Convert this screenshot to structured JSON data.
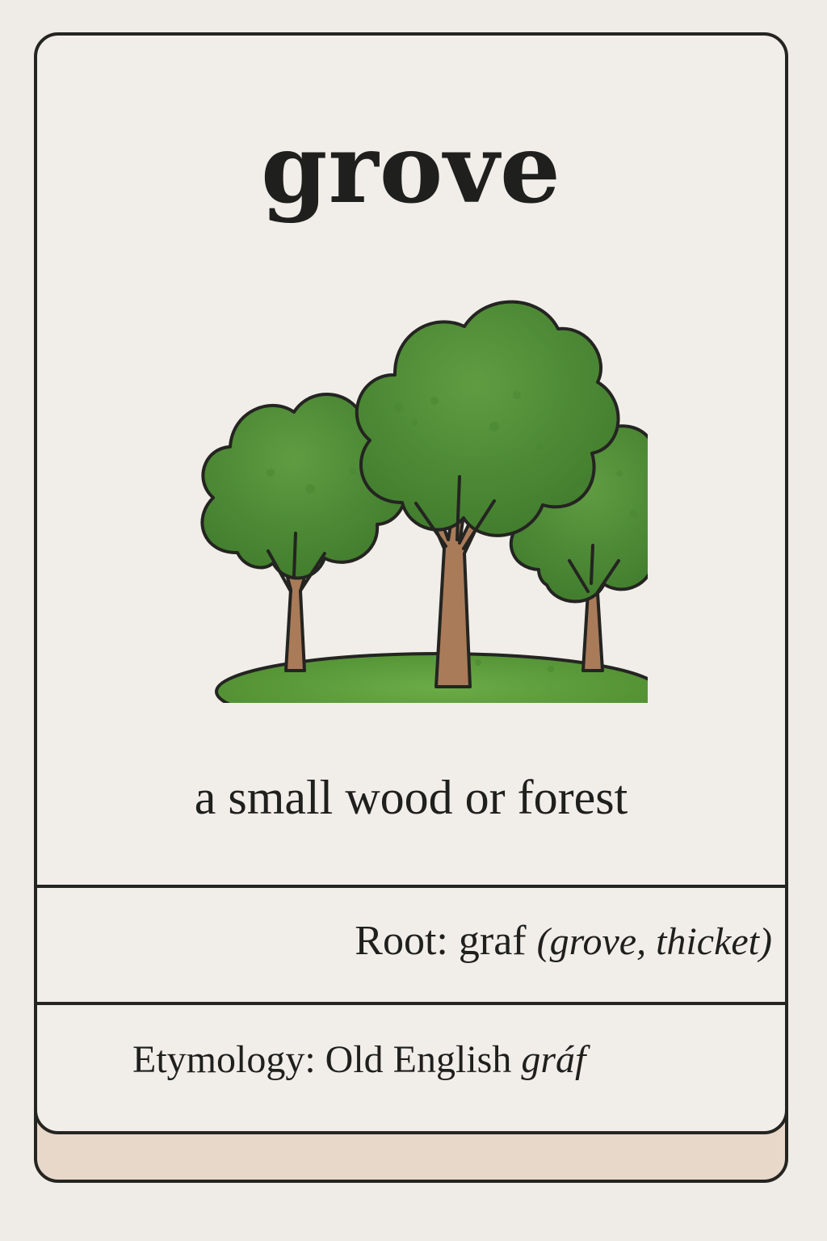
{
  "card": {
    "word": "grove",
    "definition": "a small wood or forest",
    "root": {
      "label": "Root:",
      "value": "graf",
      "gloss": "(grove, thicket)"
    },
    "etymology": {
      "label": "Etymology:",
      "language": "Old English",
      "word": "gráf"
    },
    "illustration_icon": "grove-of-trees-icon"
  },
  "colors": {
    "background": "#efebe6",
    "card_face": "#f1eeea",
    "card_border": "#242421",
    "card_shadow": "#e8d8ca",
    "foliage": "#4f8e36",
    "foliage_dark": "#3f7a2b",
    "grass": "#5a9a3a",
    "trunk": "#a97b59"
  }
}
